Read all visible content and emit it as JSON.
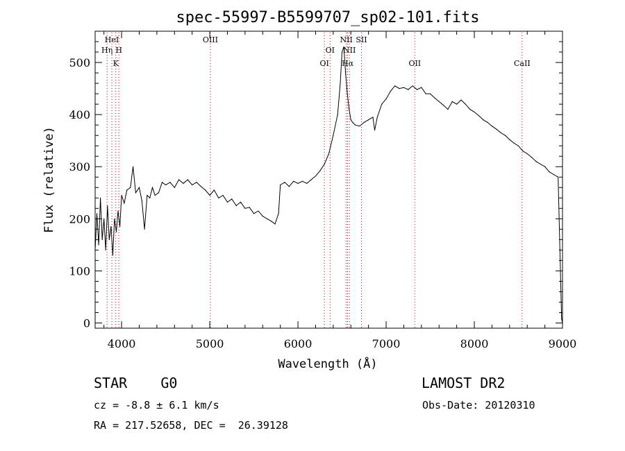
{
  "chart_data": {
    "type": "line",
    "title": "spec-55997-B5599707_sp02-101.fits",
    "xlabel": "Wavelength (Å)",
    "ylabel": "Flux (relative)",
    "xlim": [
      3700,
      9000
    ],
    "ylim": [
      -10,
      560
    ],
    "x_ticks": [
      4000,
      5000,
      6000,
      7000,
      8000,
      9000
    ],
    "y_ticks": [
      0,
      100,
      200,
      300,
      400,
      500
    ],
    "grid": false,
    "series": [
      {
        "x": [
          3700,
          3720,
          3740,
          3760,
          3780,
          3800,
          3820,
          3840,
          3860,
          3880,
          3900,
          3920,
          3940,
          3960,
          3980,
          4000,
          4030,
          4060,
          4100,
          4130,
          4160,
          4200,
          4230,
          4260,
          4290,
          4320,
          4350,
          4380,
          4420,
          4460,
          4500,
          4550,
          4600,
          4650,
          4700,
          4750,
          4800,
          4850,
          4900,
          4950,
          5000,
          5050,
          5100,
          5150,
          5200,
          5250,
          5300,
          5350,
          5400,
          5450,
          5500,
          5550,
          5600,
          5650,
          5700,
          5740,
          5780,
          5800,
          5850,
          5900,
          5950,
          6000,
          6050,
          6100,
          6150,
          6200,
          6250,
          6300,
          6350,
          6400,
          6450,
          6480,
          6500,
          6520,
          6540,
          6560,
          6580,
          6600,
          6620,
          6650,
          6700,
          6750,
          6800,
          6850,
          6870,
          6900,
          6950,
          7000,
          7050,
          7100,
          7150,
          7200,
          7250,
          7300,
          7350,
          7400,
          7450,
          7500,
          7550,
          7600,
          7650,
          7700,
          7750,
          7800,
          7850,
          7900,
          7950,
          8000,
          8050,
          8100,
          8150,
          8200,
          8250,
          8300,
          8350,
          8400,
          8450,
          8500,
          8550,
          8600,
          8650,
          8700,
          8750,
          8800,
          8850,
          8900,
          8950,
          8990,
          9000
        ],
        "y": [
          140,
          210,
          150,
          240,
          160,
          200,
          140,
          225,
          160,
          185,
          130,
          200,
          175,
          215,
          185,
          245,
          230,
          255,
          260,
          300,
          250,
          260,
          235,
          180,
          245,
          240,
          260,
          245,
          250,
          270,
          265,
          270,
          260,
          275,
          268,
          275,
          265,
          270,
          262,
          255,
          245,
          255,
          240,
          245,
          232,
          238,
          225,
          232,
          220,
          222,
          210,
          215,
          205,
          200,
          195,
          190,
          210,
          265,
          270,
          262,
          272,
          268,
          272,
          268,
          275,
          282,
          292,
          305,
          325,
          360,
          400,
          460,
          520,
          530,
          480,
          440,
          410,
          390,
          385,
          380,
          378,
          385,
          390,
          395,
          370,
          395,
          420,
          430,
          445,
          455,
          450,
          452,
          448,
          455,
          448,
          452,
          440,
          440,
          432,
          425,
          418,
          410,
          425,
          420,
          428,
          420,
          410,
          405,
          398,
          390,
          385,
          378,
          372,
          365,
          360,
          352,
          345,
          340,
          330,
          325,
          318,
          310,
          305,
          300,
          290,
          285,
          280,
          8,
          0
        ]
      }
    ],
    "line_markers": [
      {
        "label": "HeI",
        "x": 3889,
        "tier": 1
      },
      {
        "label": "Hη",
        "x": 3835,
        "tier": 2
      },
      {
        "label": "H",
        "x": 3969,
        "tier": 2
      },
      {
        "label": "K",
        "x": 3934,
        "tier": 3
      },
      {
        "label": "OIII",
        "x": 5007,
        "tier": 1
      },
      {
        "label": "NII",
        "x": 6548,
        "tier": 1
      },
      {
        "label": "SII",
        "x": 6720,
        "tier": 1
      },
      {
        "label": "OI",
        "x": 6364,
        "tier": 2
      },
      {
        "label": "OI",
        "x": 6300,
        "tier": 3
      },
      {
        "label": "NII",
        "x": 6584,
        "tier": 2
      },
      {
        "label": "Hα",
        "x": 6563,
        "tier": 3
      },
      {
        "label": "OII",
        "x": 7325,
        "tier": 3
      },
      {
        "label": "CaII",
        "x": 8542,
        "tier": 3
      }
    ],
    "marker_color": "#cc0000",
    "line_color": "#000000"
  },
  "info": {
    "class": "STAR    G0",
    "survey": "LAMOST DR2",
    "cz": "cz = -8.8 ± 6.1 km/s",
    "obs_date": "Obs-Date: 20120310",
    "coords": "RA = 217.52658, DEC =  26.39128"
  }
}
